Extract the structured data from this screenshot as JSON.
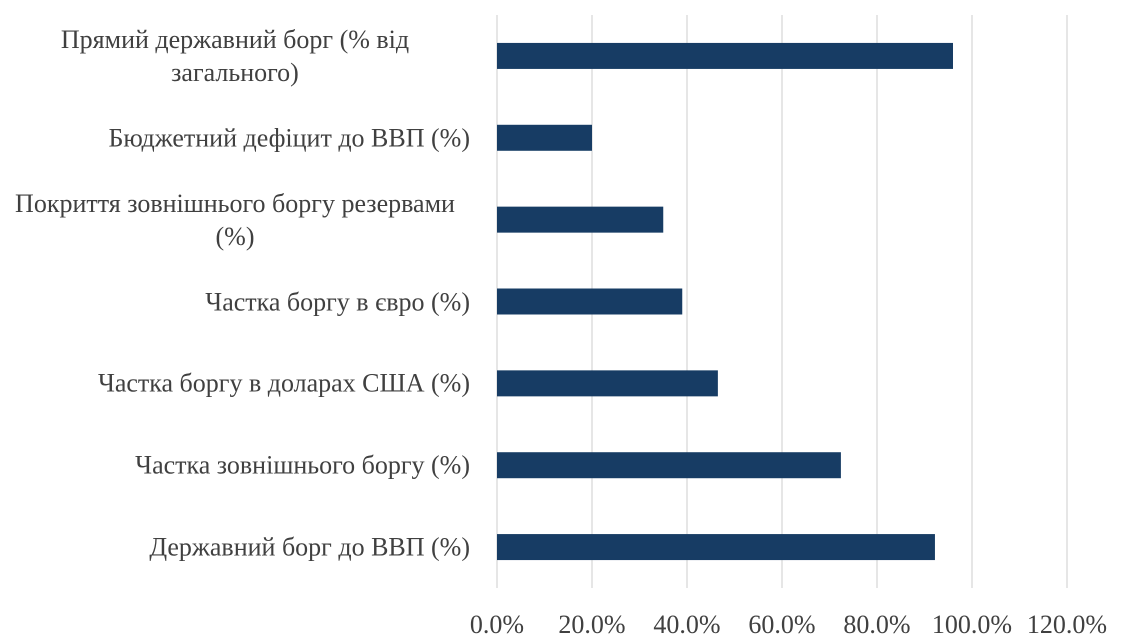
{
  "chart_data": {
    "type": "bar",
    "orientation": "horizontal",
    "categories": [
      "Прямий державний борг (% від загального)",
      "Бюджетний дефіцит до ВВП (%)",
      "Покриття зовнішнього боргу резервами (%)",
      "Частка боргу в євро (%)",
      "Частка боргу в доларах США (%)",
      "Частка зовнішнього боргу (%)",
      "Державний борг до ВВП (%)"
    ],
    "values": [
      96,
      20,
      35,
      39,
      46.5,
      72.4,
      92.2
    ],
    "color": "#173c64",
    "xlim": [
      0,
      120
    ],
    "xticks": [
      {
        "value": 0,
        "label": "0.0%"
      },
      {
        "value": 20,
        "label": "20.0%"
      },
      {
        "value": 40,
        "label": "40.0%"
      },
      {
        "value": 60,
        "label": "60.0%"
      },
      {
        "value": 80,
        "label": "80.0%"
      },
      {
        "value": 100,
        "label": "100.0%"
      },
      {
        "value": 120,
        "label": "120.0%"
      }
    ],
    "grid": true
  }
}
